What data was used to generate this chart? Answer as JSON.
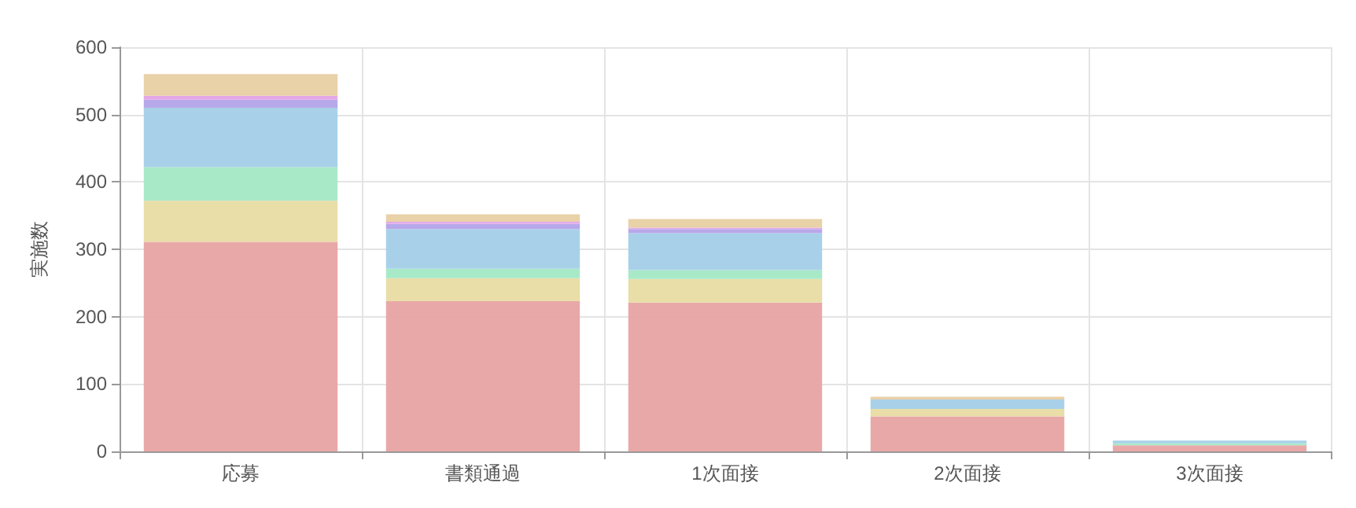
{
  "chart_data": {
    "type": "bar",
    "stacked": true,
    "ylabel": "実施数",
    "categories": [
      "応募",
      "書類通過",
      "1次面接",
      "2次面接",
      "3次面接"
    ],
    "series": [
      {
        "color": "#e8a3a3",
        "values": [
          311,
          223,
          221,
          52,
          9
        ]
      },
      {
        "color": "#e8dba3",
        "values": [
          61,
          34,
          35,
          11,
          0
        ]
      },
      {
        "color": "#a3e8c5",
        "values": [
          50,
          14,
          13,
          0,
          3
        ]
      },
      {
        "color": "#a3cfe8",
        "values": [
          88,
          59,
          55,
          14,
          4
        ]
      },
      {
        "color": "#b3a3e8",
        "values": [
          12,
          8,
          6,
          0,
          0
        ]
      },
      {
        "color": "#e3a3e8",
        "values": [
          6,
          3,
          2,
          0,
          0
        ]
      },
      {
        "color": "#e8cfa3",
        "values": [
          32,
          11,
          13,
          4,
          0
        ]
      }
    ],
    "ylim": [
      0,
      600
    ],
    "yticks": [
      0,
      100,
      200,
      300,
      400,
      500,
      600
    ],
    "grid": true
  }
}
